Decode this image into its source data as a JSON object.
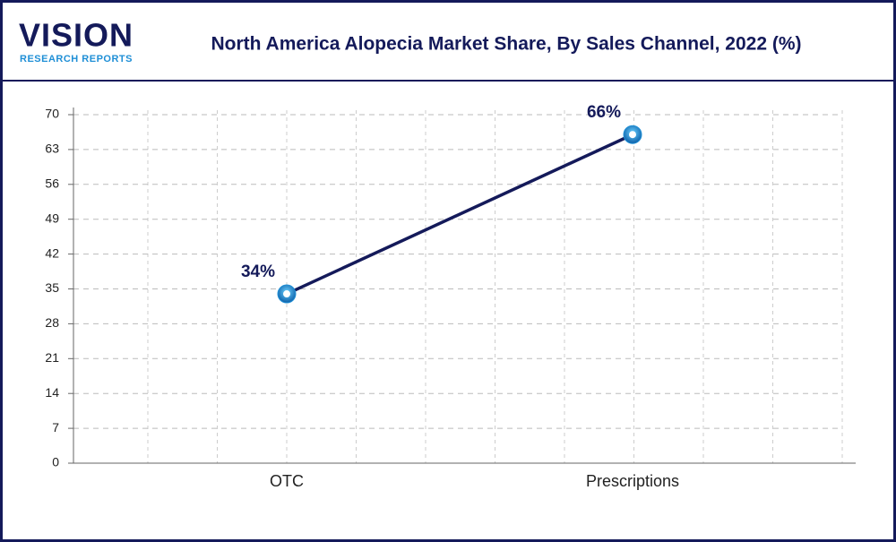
{
  "logo": {
    "name": "VISION",
    "tagline": "RESEARCH REPORTS"
  },
  "chart_data": {
    "type": "line",
    "title": "North America Alopecia Market Share, By Sales Channel, 2022 (%)",
    "categories": [
      "OTC",
      "Prescriptions"
    ],
    "values": [
      34,
      66
    ],
    "value_labels": [
      "34%",
      "66%"
    ],
    "color": "#141a5a",
    "marker_color": "#1f8fd6",
    "ylim": [
      0,
      70
    ],
    "yticks": [
      0,
      7,
      14,
      21,
      28,
      35,
      42,
      49,
      56,
      63,
      70
    ],
    "grid": true
  }
}
